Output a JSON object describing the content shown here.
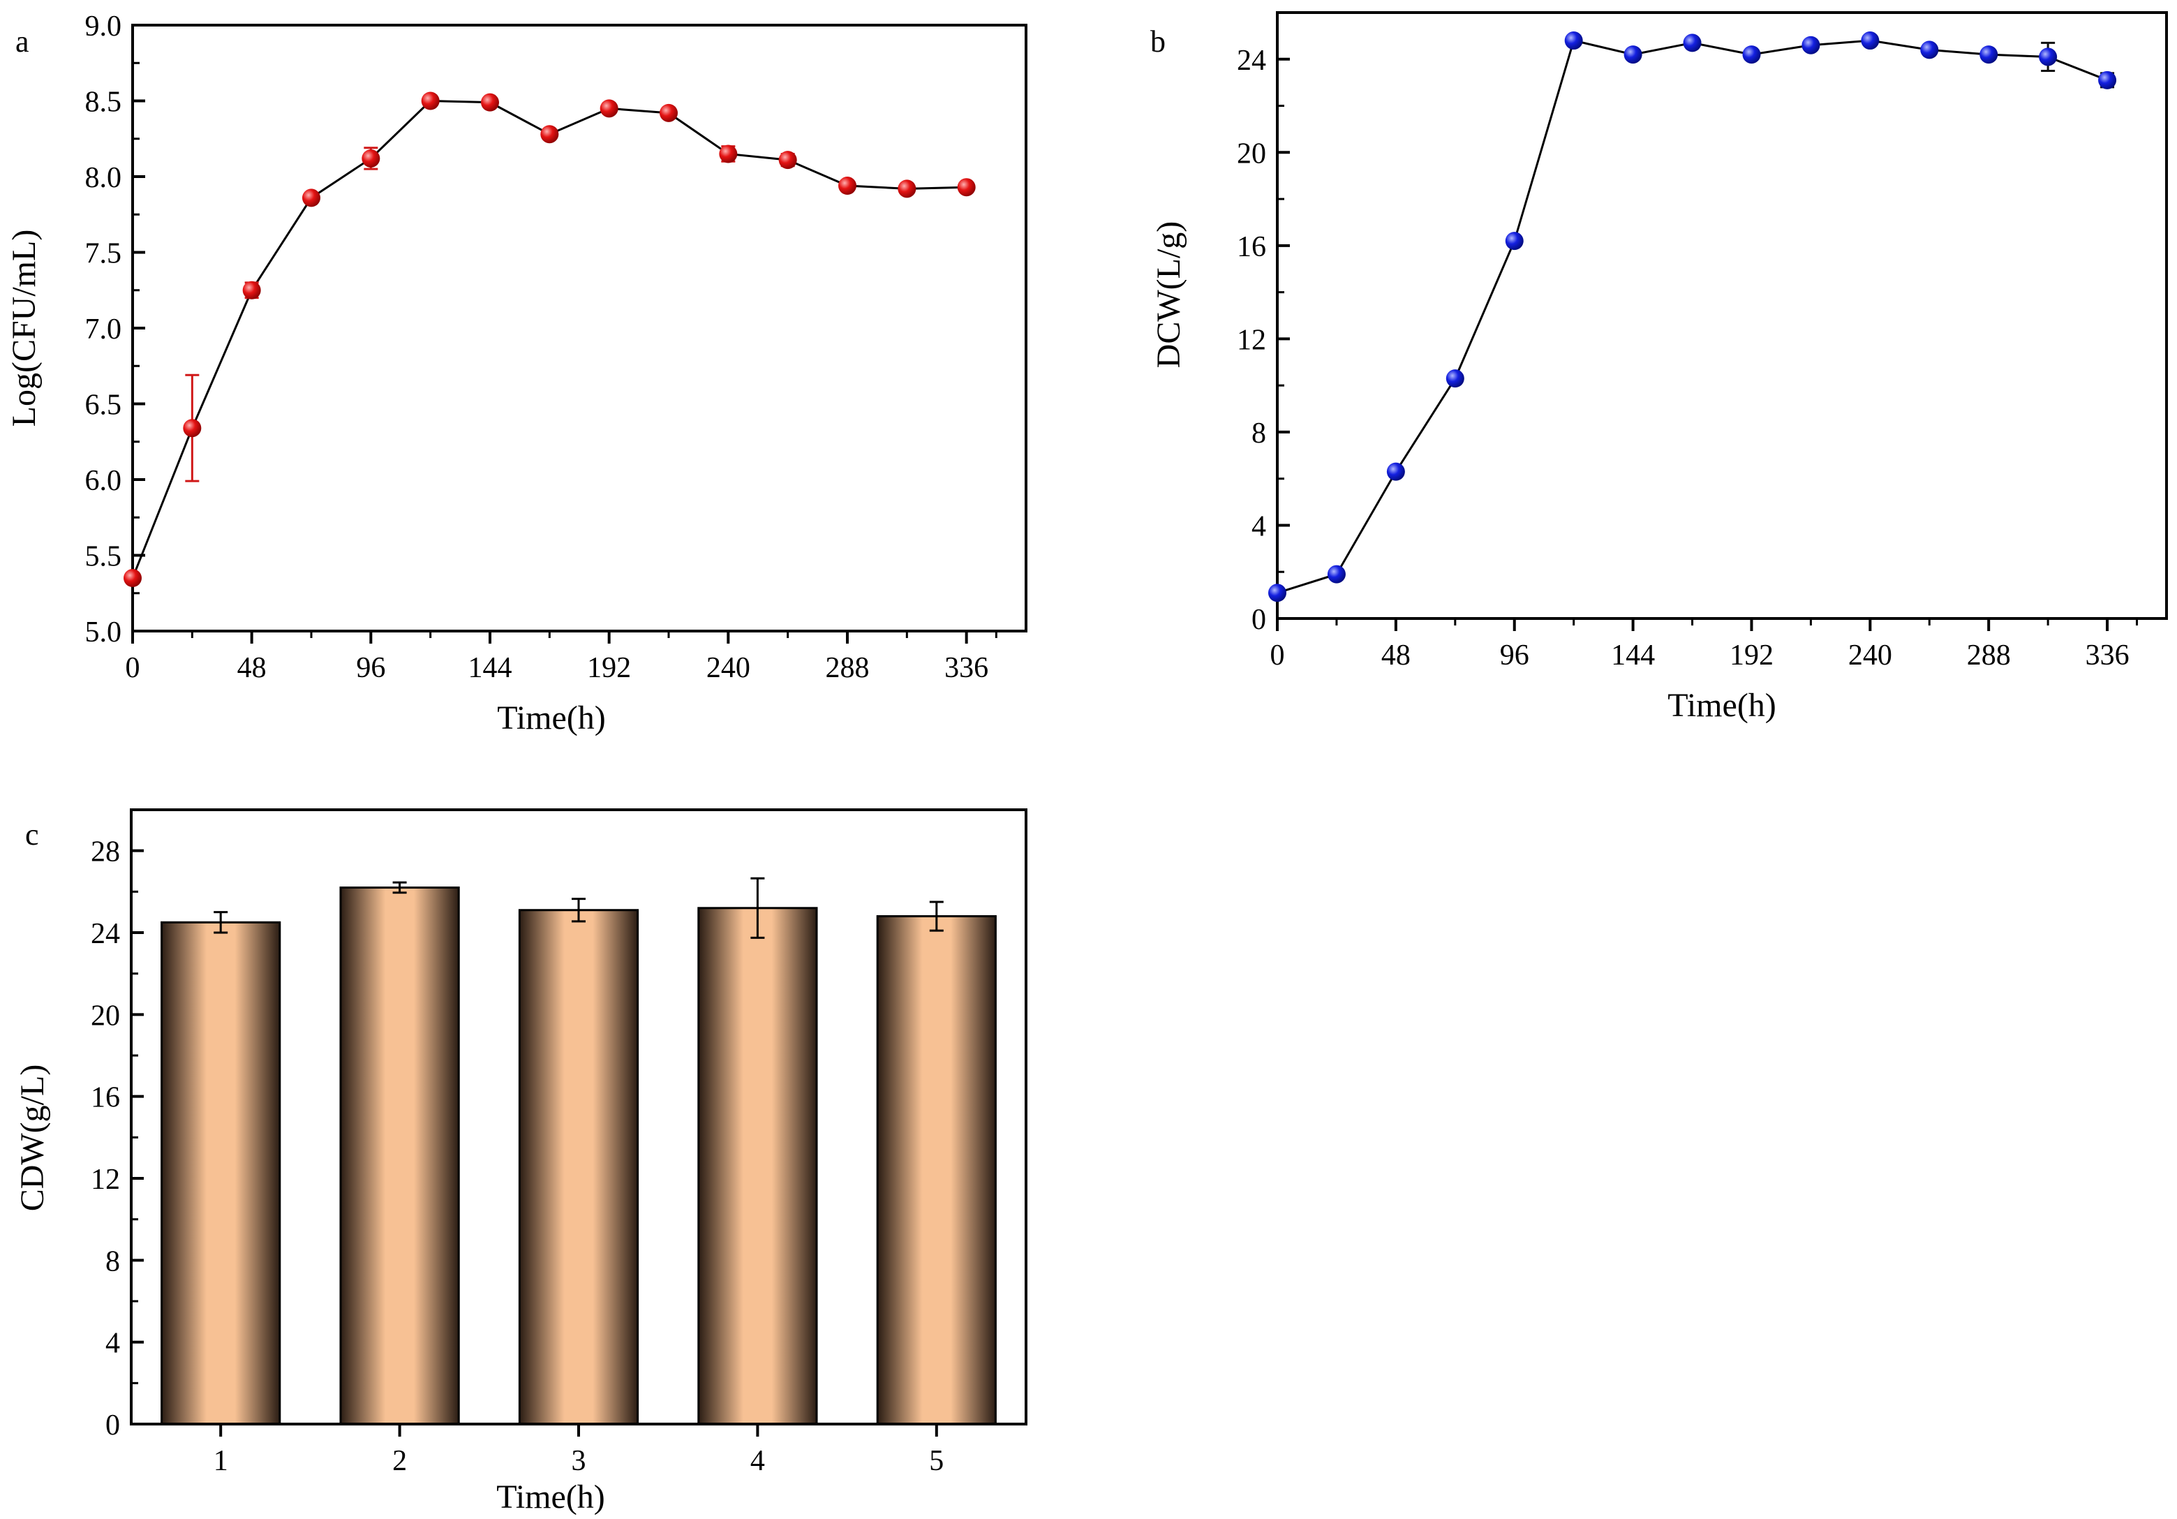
{
  "colors": {
    "panel_a_marker": "#e41414",
    "panel_b_marker": "#1420e0",
    "bar_fill": "#f7c194",
    "bar_edge": "#2b1d14",
    "axis": "#000000"
  },
  "chart_data": [
    {
      "panel": "a",
      "type": "line",
      "xlabel": "Time(h)",
      "ylabel": "Log(CFU/mL)",
      "xlim": [
        0,
        360
      ],
      "ylim": [
        5.0,
        9.0
      ],
      "xticks": [
        0,
        48,
        96,
        144,
        192,
        240,
        288,
        336
      ],
      "yticks": [
        5.0,
        5.5,
        6.0,
        6.5,
        7.0,
        7.5,
        8.0,
        8.5,
        9.0
      ],
      "ytick_labels": [
        "5.0",
        "5.5",
        "6.0",
        "6.5",
        "7.0",
        "7.5",
        "8.0",
        "8.5",
        "9.0"
      ],
      "x": [
        0,
        24,
        48,
        72,
        96,
        120,
        144,
        168,
        192,
        216,
        240,
        264,
        288,
        312,
        336
      ],
      "y": [
        5.35,
        6.34,
        7.25,
        7.86,
        8.12,
        8.5,
        8.49,
        8.28,
        8.45,
        8.42,
        8.15,
        8.11,
        7.94,
        7.92,
        7.93
      ],
      "error": [
        0.0,
        0.35,
        0.05,
        0.03,
        0.07,
        0.02,
        0.02,
        0.02,
        0.02,
        0.02,
        0.05,
        0.04,
        0.02,
        0.02,
        0.02
      ]
    },
    {
      "panel": "b",
      "type": "line",
      "xlabel": "Time(h)",
      "ylabel": "DCW(L/g)",
      "xlim": [
        0,
        360
      ],
      "ylim": [
        0,
        26
      ],
      "xticks": [
        0,
        48,
        96,
        144,
        192,
        240,
        288,
        336
      ],
      "yticks": [
        0,
        4,
        8,
        12,
        16,
        20,
        24
      ],
      "ytick_labels": [
        "0",
        "4",
        "8",
        "12",
        "16",
        "20",
        "24"
      ],
      "x": [
        0,
        24,
        48,
        72,
        96,
        120,
        144,
        168,
        192,
        216,
        240,
        264,
        288,
        312,
        336
      ],
      "y": [
        1.1,
        1.9,
        6.3,
        10.3,
        16.2,
        24.8,
        24.2,
        24.7,
        24.2,
        24.6,
        24.8,
        24.4,
        24.2,
        24.1,
        23.1
      ],
      "error": [
        0.05,
        0.1,
        0.1,
        0.1,
        0.1,
        0.1,
        0.1,
        0.1,
        0.15,
        0.15,
        0.1,
        0.1,
        0.15,
        0.6,
        0.3
      ]
    },
    {
      "panel": "c",
      "type": "bar",
      "xlabel": "Time(h)",
      "ylabel": "CDW(g/L)",
      "ylim": [
        0,
        30
      ],
      "yticks": [
        0,
        4,
        8,
        12,
        16,
        20,
        24,
        28
      ],
      "ytick_labels": [
        "0",
        "4",
        "8",
        "12",
        "16",
        "20",
        "24",
        "28"
      ],
      "categories": [
        "1",
        "2",
        "3",
        "4",
        "5"
      ],
      "values": [
        24.5,
        26.2,
        25.1,
        25.2,
        24.8
      ],
      "error": [
        0.5,
        0.25,
        0.55,
        1.45,
        0.7
      ]
    }
  ]
}
